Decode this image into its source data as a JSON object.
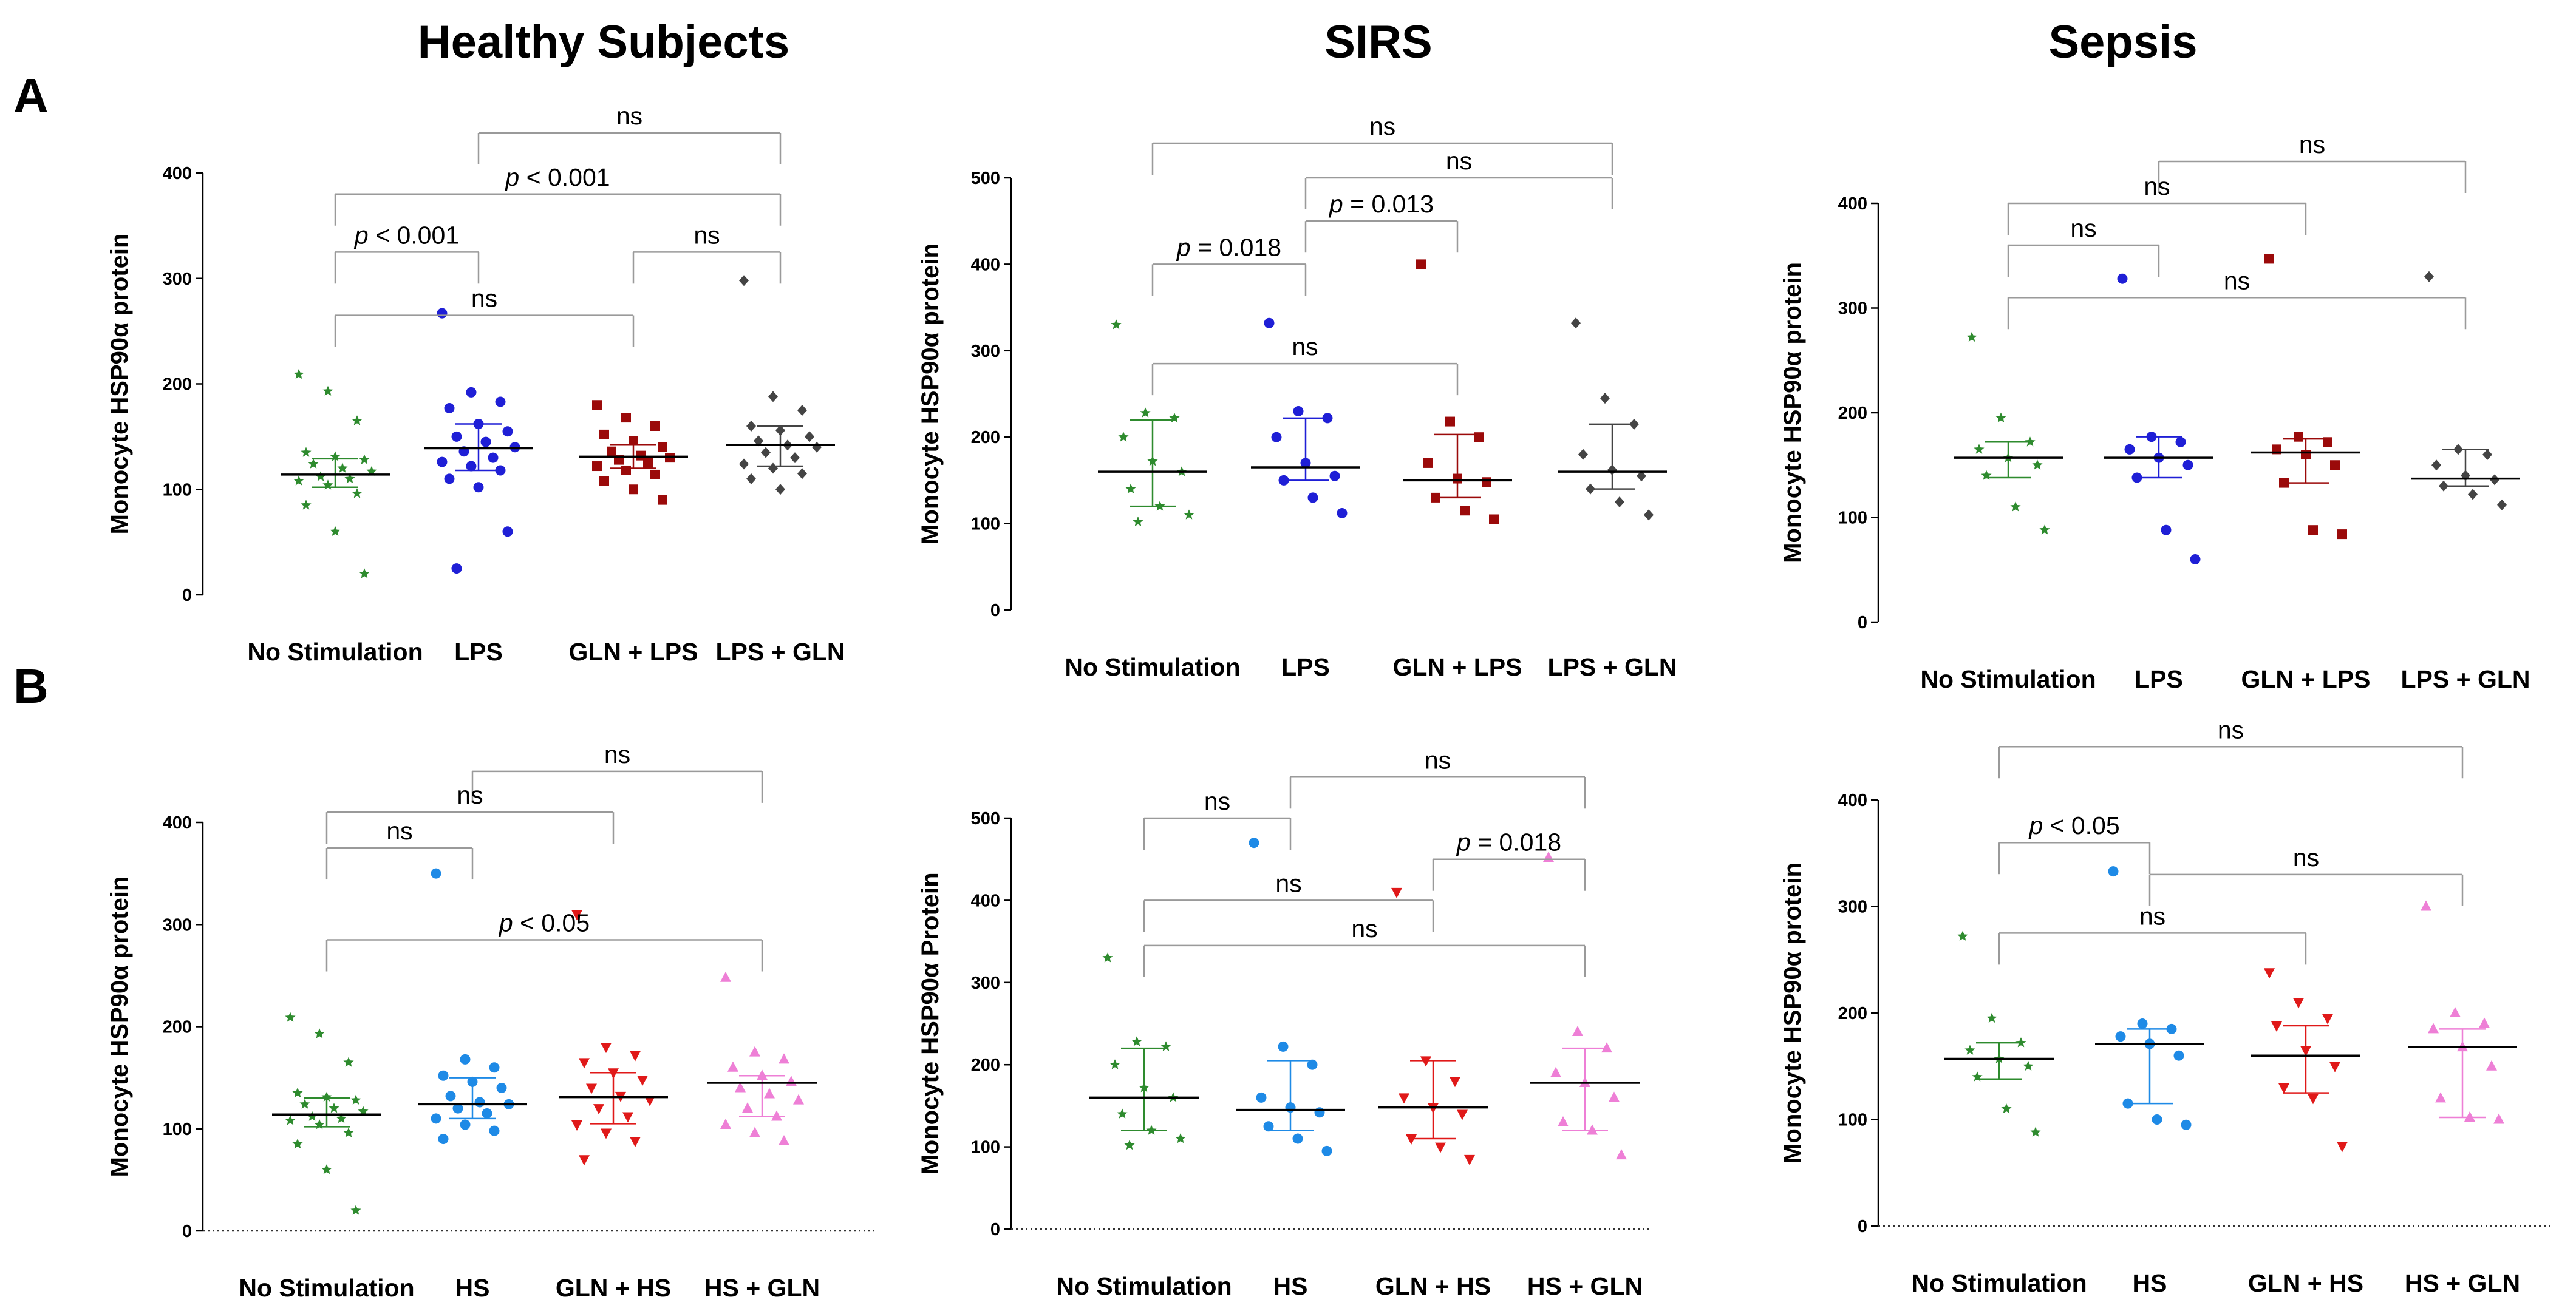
{
  "figure": {
    "column_titles": [
      "Healthy Subjects",
      "SIRS",
      "Sepsis"
    ],
    "row_labels": [
      "A",
      "B"
    ]
  },
  "colors": {
    "no_stimulation": "#2e8b2e",
    "lps": "#1f1fd6",
    "gln_lps": "#9b0a0a",
    "lps_gln": "#444444",
    "hs": "#1e8ae6",
    "gln_hs": "#e01919",
    "hs_gln": "#ee7fd6",
    "bracket": "#9a9a9a",
    "bar": "#000000"
  },
  "chart_data": [
    {
      "id": "A-healthy",
      "row": "A",
      "column": "Healthy Subjects",
      "type": "scatter",
      "ylabel": "Monocyte HSP90α protein",
      "ylim": [
        0,
        400
      ],
      "yticks": [
        0,
        100,
        200,
        300,
        400
      ],
      "baseline_dotted": false,
      "categories": [
        "No Stimulation",
        "LPS",
        "GLN + LPS",
        "LPS + GLN"
      ],
      "series": [
        {
          "name": "No Stimulation",
          "color_key": "no_stimulation",
          "marker": "star",
          "median": 114,
          "iqr": [
            102,
            129
          ],
          "values": [
            209,
            193,
            165,
            135,
            131,
            128,
            124,
            120,
            117,
            112,
            110,
            108,
            104,
            96,
            85,
            60,
            20
          ]
        },
        {
          "name": "LPS",
          "color_key": "lps",
          "marker": "circle",
          "median": 139,
          "iqr": [
            118,
            162
          ],
          "values": [
            267,
            192,
            183,
            177,
            162,
            155,
            150,
            145,
            140,
            136,
            130,
            126,
            122,
            118,
            110,
            102,
            60,
            25
          ]
        },
        {
          "name": "GLN + LPS",
          "color_key": "gln_lps",
          "marker": "square",
          "median": 131,
          "iqr": [
            120,
            142
          ],
          "values": [
            180,
            168,
            160,
            152,
            146,
            140,
            136,
            132,
            130,
            128,
            125,
            122,
            118,
            114,
            108,
            100,
            90
          ]
        },
        {
          "name": "LPS + GLN",
          "color_key": "lps_gln",
          "marker": "diamond",
          "median": 142,
          "iqr": [
            122,
            160
          ],
          "values": [
            298,
            188,
            175,
            160,
            156,
            150,
            146,
            142,
            140,
            135,
            130,
            124,
            120,
            115,
            110,
            100
          ]
        }
      ],
      "comparisons": [
        {
          "from": 1,
          "to": 3,
          "y": 438,
          "label": "ns"
        },
        {
          "from": 0,
          "to": 3,
          "y": 380,
          "label": "p < 0.001"
        },
        {
          "from": 0,
          "to": 1,
          "y": 325,
          "label": "p < 0.001"
        },
        {
          "from": 2,
          "to": 3,
          "y": 325,
          "label": "ns"
        },
        {
          "from": 0,
          "to": 2,
          "y": 265,
          "label": "ns"
        }
      ]
    },
    {
      "id": "A-sirs",
      "row": "A",
      "column": "SIRS",
      "type": "scatter",
      "ylabel": "Monocyte HSP90α protein",
      "ylim": [
        0,
        500
      ],
      "yticks": [
        0,
        100,
        200,
        300,
        400,
        500
      ],
      "baseline_dotted": false,
      "categories": [
        "No Stimulation",
        "LPS",
        "GLN + LPS",
        "LPS + GLN"
      ],
      "series": [
        {
          "name": "No Stimulation",
          "color_key": "no_stimulation",
          "marker": "star",
          "median": 160,
          "iqr": [
            120,
            220
          ],
          "values": [
            330,
            228,
            222,
            200,
            172,
            160,
            140,
            120,
            110,
            102
          ]
        },
        {
          "name": "LPS",
          "color_key": "lps",
          "marker": "circle",
          "median": 165,
          "iqr": [
            150,
            222
          ],
          "values": [
            332,
            230,
            222,
            200,
            170,
            155,
            150,
            130,
            112
          ]
        },
        {
          "name": "GLN + LPS",
          "color_key": "gln_lps",
          "marker": "square",
          "median": 150,
          "iqr": [
            130,
            203
          ],
          "values": [
            400,
            218,
            200,
            170,
            152,
            148,
            130,
            115,
            105
          ]
        },
        {
          "name": "LPS + GLN",
          "color_key": "lps_gln",
          "marker": "diamond",
          "median": 160,
          "iqr": [
            140,
            215
          ],
          "values": [
            332,
            245,
            215,
            180,
            162,
            155,
            140,
            125,
            110
          ]
        }
      ],
      "comparisons": [
        {
          "from": 0,
          "to": 3,
          "y": 540,
          "label": "ns"
        },
        {
          "from": 1,
          "to": 3,
          "y": 500,
          "label": "ns"
        },
        {
          "from": 1,
          "to": 2,
          "y": 450,
          "label": "p = 0.013"
        },
        {
          "from": 0,
          "to": 1,
          "y": 400,
          "label": "p = 0.018"
        },
        {
          "from": 0,
          "to": 2,
          "y": 285,
          "label": "ns"
        }
      ]
    },
    {
      "id": "A-sepsis",
      "row": "A",
      "column": "Sepsis",
      "type": "scatter",
      "ylabel": "Monocyte HSP90α protein",
      "ylim": [
        0,
        400
      ],
      "yticks": [
        0,
        100,
        200,
        300,
        400
      ],
      "baseline_dotted": false,
      "categories": [
        "No Stimulation",
        "LPS",
        "GLN + LPS",
        "LPS + GLN"
      ],
      "series": [
        {
          "name": "No Stimulation",
          "color_key": "no_stimulation",
          "marker": "star",
          "median": 157,
          "iqr": [
            138,
            172
          ],
          "values": [
            272,
            195,
            172,
            165,
            157,
            150,
            140,
            110,
            88
          ]
        },
        {
          "name": "LPS",
          "color_key": "lps",
          "marker": "circle",
          "median": 157,
          "iqr": [
            138,
            177
          ],
          "values": [
            328,
            177,
            172,
            165,
            157,
            150,
            138,
            88,
            60
          ]
        },
        {
          "name": "GLN + LPS",
          "color_key": "gln_lps",
          "marker": "square",
          "median": 162,
          "iqr": [
            133,
            175
          ],
          "values": [
            347,
            177,
            172,
            165,
            160,
            150,
            133,
            88,
            84
          ]
        },
        {
          "name": "LPS + GLN",
          "color_key": "lps_gln",
          "marker": "diamond",
          "median": 137,
          "iqr": [
            130,
            165
          ],
          "values": [
            330,
            165,
            160,
            150,
            140,
            136,
            130,
            122,
            112
          ]
        }
      ],
      "comparisons": [
        {
          "from": 1,
          "to": 3,
          "y": 440,
          "label": "ns"
        },
        {
          "from": 0,
          "to": 2,
          "y": 400,
          "label": "ns"
        },
        {
          "from": 0,
          "to": 1,
          "y": 360,
          "label": "ns"
        },
        {
          "from": 0,
          "to": 3,
          "y": 310,
          "label": "ns"
        }
      ]
    },
    {
      "id": "B-healthy",
      "row": "B",
      "column": "Healthy Subjects",
      "type": "scatter",
      "ylabel": "Monocyte HSP90α protein",
      "ylim": [
        0,
        400
      ],
      "yticks": [
        0,
        100,
        200,
        300,
        400
      ],
      "baseline_dotted": true,
      "categories": [
        "No Stimulation",
        "HS",
        "GLN + HS",
        "HS + GLN"
      ],
      "series": [
        {
          "name": "No Stimulation",
          "color_key": "no_stimulation",
          "marker": "star",
          "median": 114,
          "iqr": [
            102,
            130
          ],
          "values": [
            209,
            193,
            165,
            135,
            131,
            128,
            124,
            120,
            117,
            112,
            110,
            108,
            104,
            96,
            85,
            60,
            20
          ]
        },
        {
          "name": "HS",
          "color_key": "hs",
          "marker": "circle",
          "median": 124,
          "iqr": [
            110,
            150
          ],
          "values": [
            350,
            168,
            160,
            152,
            146,
            140,
            132,
            126,
            124,
            120,
            115,
            110,
            104,
            98,
            90
          ]
        },
        {
          "name": "GLN + HS",
          "color_key": "gln_hs",
          "marker": "triangle-down",
          "median": 131,
          "iqr": [
            105,
            155
          ],
          "values": [
            310,
            180,
            172,
            165,
            155,
            148,
            140,
            132,
            128,
            120,
            112,
            104,
            96,
            88,
            70
          ]
        },
        {
          "name": "HS + GLN",
          "color_key": "hs_gln",
          "marker": "triangle-up",
          "median": 145,
          "iqr": [
            112,
            152
          ],
          "values": [
            248,
            175,
            168,
            160,
            152,
            146,
            140,
            134,
            128,
            120,
            112,
            104,
            96,
            88
          ]
        }
      ],
      "comparisons": [
        {
          "from": 1,
          "to": 3,
          "y": 450,
          "label": "ns"
        },
        {
          "from": 0,
          "to": 2,
          "y": 410,
          "label": "ns"
        },
        {
          "from": 0,
          "to": 1,
          "y": 375,
          "label": "ns"
        },
        {
          "from": 0,
          "to": 3,
          "y": 285,
          "label": "p < 0.05"
        }
      ]
    },
    {
      "id": "B-sirs",
      "row": "B",
      "column": "SIRS",
      "type": "scatter",
      "ylabel": "Monocyte HSP90α Protein",
      "ylim": [
        0,
        500
      ],
      "yticks": [
        0,
        100,
        200,
        300,
        400,
        500
      ],
      "baseline_dotted": true,
      "categories": [
        "No Stimulation",
        "HS",
        "GLN + HS",
        "HS + GLN"
      ],
      "series": [
        {
          "name": "No Stimulation",
          "color_key": "no_stimulation",
          "marker": "star",
          "median": 160,
          "iqr": [
            120,
            220
          ],
          "values": [
            330,
            228,
            222,
            200,
            172,
            160,
            140,
            120,
            110,
            102
          ]
        },
        {
          "name": "HS",
          "color_key": "hs",
          "marker": "circle",
          "median": 145,
          "iqr": [
            120,
            205
          ],
          "values": [
            470,
            222,
            200,
            160,
            148,
            142,
            125,
            110,
            95
          ]
        },
        {
          "name": "GLN + HS",
          "color_key": "gln_hs",
          "marker": "triangle-down",
          "median": 148,
          "iqr": [
            110,
            205
          ],
          "values": [
            410,
            205,
            180,
            160,
            148,
            140,
            110,
            100,
            85
          ]
        },
        {
          "name": "HS + GLN",
          "color_key": "hs_gln",
          "marker": "triangle-up",
          "median": 178,
          "iqr": [
            120,
            220
          ],
          "values": [
            452,
            240,
            220,
            190,
            178,
            160,
            130,
            120,
            90
          ]
        }
      ],
      "comparisons": [
        {
          "from": 1,
          "to": 3,
          "y": 550,
          "label": "ns"
        },
        {
          "from": 0,
          "to": 1,
          "y": 500,
          "label": "ns"
        },
        {
          "from": 2,
          "to": 3,
          "y": 450,
          "label": "p = 0.018"
        },
        {
          "from": 0,
          "to": 2,
          "y": 400,
          "label": "ns"
        },
        {
          "from": 0,
          "to": 3,
          "y": 345,
          "label": "ns"
        }
      ]
    },
    {
      "id": "B-sepsis",
      "row": "B",
      "column": "Sepsis",
      "type": "scatter",
      "ylabel": "Monocyte HSP90α protein",
      "ylim": [
        0,
        400
      ],
      "yticks": [
        0,
        100,
        200,
        300,
        400
      ],
      "baseline_dotted": true,
      "categories": [
        "No Stimulation",
        "HS",
        "GLN + HS",
        "HS + GLN"
      ],
      "series": [
        {
          "name": "No Stimulation",
          "color_key": "no_stimulation",
          "marker": "star",
          "median": 157,
          "iqr": [
            138,
            172
          ],
          "values": [
            272,
            195,
            172,
            165,
            157,
            150,
            140,
            110,
            88
          ]
        },
        {
          "name": "HS",
          "color_key": "hs",
          "marker": "circle",
          "median": 171,
          "iqr": [
            115,
            185
          ],
          "values": [
            333,
            190,
            185,
            178,
            171,
            160,
            115,
            100,
            95
          ]
        },
        {
          "name": "GLN + HS",
          "color_key": "gln_hs",
          "marker": "triangle-down",
          "median": 160,
          "iqr": [
            125,
            188
          ],
          "values": [
            238,
            210,
            195,
            188,
            165,
            150,
            130,
            120,
            75
          ]
        },
        {
          "name": "HS + GLN",
          "color_key": "hs_gln",
          "marker": "triangle-up",
          "median": 168,
          "iqr": [
            102,
            185
          ],
          "values": [
            300,
            200,
            190,
            185,
            168,
            150,
            120,
            102,
            100
          ]
        }
      ],
      "comparisons": [
        {
          "from": 0,
          "to": 3,
          "y": 450,
          "label": "ns"
        },
        {
          "from": 0,
          "to": 1,
          "y": 360,
          "label": "p < 0.05"
        },
        {
          "from": 1,
          "to": 3,
          "y": 330,
          "label": "ns"
        },
        {
          "from": 0,
          "to": 2,
          "y": 275,
          "label": "ns"
        }
      ]
    }
  ]
}
